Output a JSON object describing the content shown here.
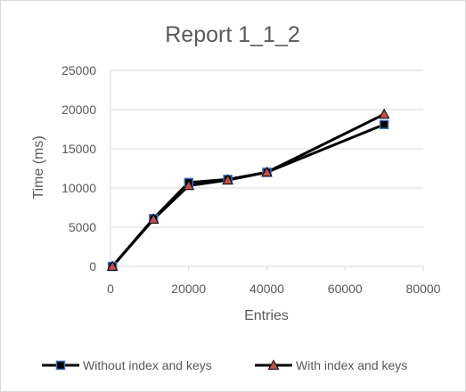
{
  "chart_data": {
    "type": "scatter",
    "title": "Report 1_1_2",
    "xlabel": "Entries",
    "ylabel": "Time (ms)",
    "xlim": [
      0,
      80000
    ],
    "ylim": [
      0,
      25000
    ],
    "x_ticks": [
      0,
      20000,
      40000,
      60000,
      80000
    ],
    "y_ticks": [
      0,
      5000,
      10000,
      15000,
      20000,
      25000
    ],
    "grid": "horizontal",
    "legend_position": "bottom",
    "series": [
      {
        "name": "Without index and keys",
        "marker": "square",
        "marker_fill": "#000000",
        "marker_stroke": "#4472c4",
        "line_color": "#000000",
        "points": [
          [
            500,
            0
          ],
          [
            11000,
            6100
          ],
          [
            20000,
            10700
          ],
          [
            30000,
            11100
          ],
          [
            40000,
            12000
          ],
          [
            70000,
            18100
          ]
        ]
      },
      {
        "name": "With index and keys",
        "marker": "triangle",
        "marker_fill": "#c0504d",
        "marker_stroke": "#000000",
        "line_color": "#000000",
        "points": [
          [
            500,
            0
          ],
          [
            11000,
            6000
          ],
          [
            20000,
            10300
          ],
          [
            30000,
            11000
          ],
          [
            40000,
            12000
          ],
          [
            70000,
            19400
          ]
        ]
      }
    ]
  }
}
